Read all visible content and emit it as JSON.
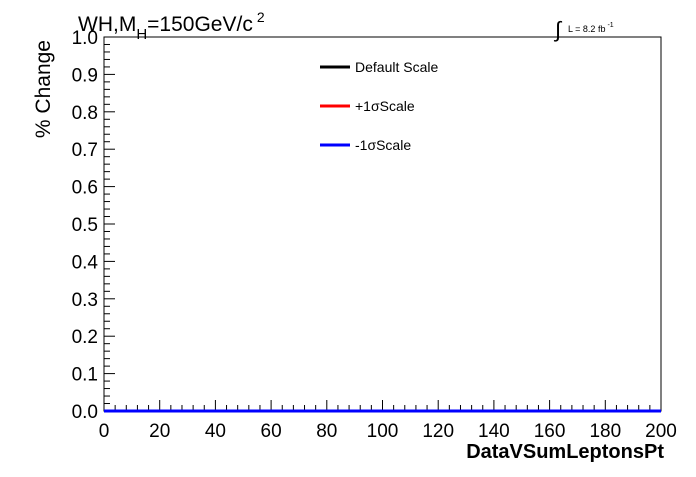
{
  "chart_data": {
    "type": "line",
    "title": {
      "prefix": "WH,M",
      "subscript": "H",
      "middle": "=150GeV/c",
      "superscript": "2"
    },
    "lumi_label": {
      "integral": "∫",
      "text": "L = 8.2 fb",
      "superscript": "-1"
    },
    "xlabel": "DataVSumLeptonsPt",
    "ylabel": "% Change",
    "xlim": [
      0,
      200
    ],
    "ylim": [
      0,
      1.0
    ],
    "x_ticks": [
      {
        "value": 0,
        "label": "0"
      },
      {
        "value": 20,
        "label": "20"
      },
      {
        "value": 40,
        "label": "40"
      },
      {
        "value": 60,
        "label": "60"
      },
      {
        "value": 80,
        "label": "80"
      },
      {
        "value": 100,
        "label": "100"
      },
      {
        "value": 120,
        "label": "120"
      },
      {
        "value": 140,
        "label": "140"
      },
      {
        "value": 160,
        "label": "160"
      },
      {
        "value": 180,
        "label": "180"
      },
      {
        "value": 200,
        "label": "200"
      }
    ],
    "y_ticks": [
      {
        "value": 0.0,
        "label": "0.0"
      },
      {
        "value": 0.1,
        "label": "0.1"
      },
      {
        "value": 0.2,
        "label": "0.2"
      },
      {
        "value": 0.3,
        "label": "0.3"
      },
      {
        "value": 0.4,
        "label": "0.4"
      },
      {
        "value": 0.5,
        "label": "0.5"
      },
      {
        "value": 0.6,
        "label": "0.6"
      },
      {
        "value": 0.7,
        "label": "0.7"
      },
      {
        "value": 0.8,
        "label": "0.8"
      },
      {
        "value": 0.9,
        "label": "0.9"
      },
      {
        "value": 1.0,
        "label": "1.0"
      }
    ],
    "legend_position": "top-center",
    "grid": false,
    "series": [
      {
        "name": "Default Scale",
        "color": "#000000",
        "x": [
          0,
          200
        ],
        "y": [
          0,
          0
        ]
      },
      {
        "name": "+1σScale",
        "color": "#ff0000",
        "x": [
          0,
          200
        ],
        "y": [
          0,
          0
        ]
      },
      {
        "name": "-1σScale",
        "color": "#0000ff",
        "x": [
          0,
          200
        ],
        "y": [
          0,
          0
        ]
      }
    ]
  }
}
